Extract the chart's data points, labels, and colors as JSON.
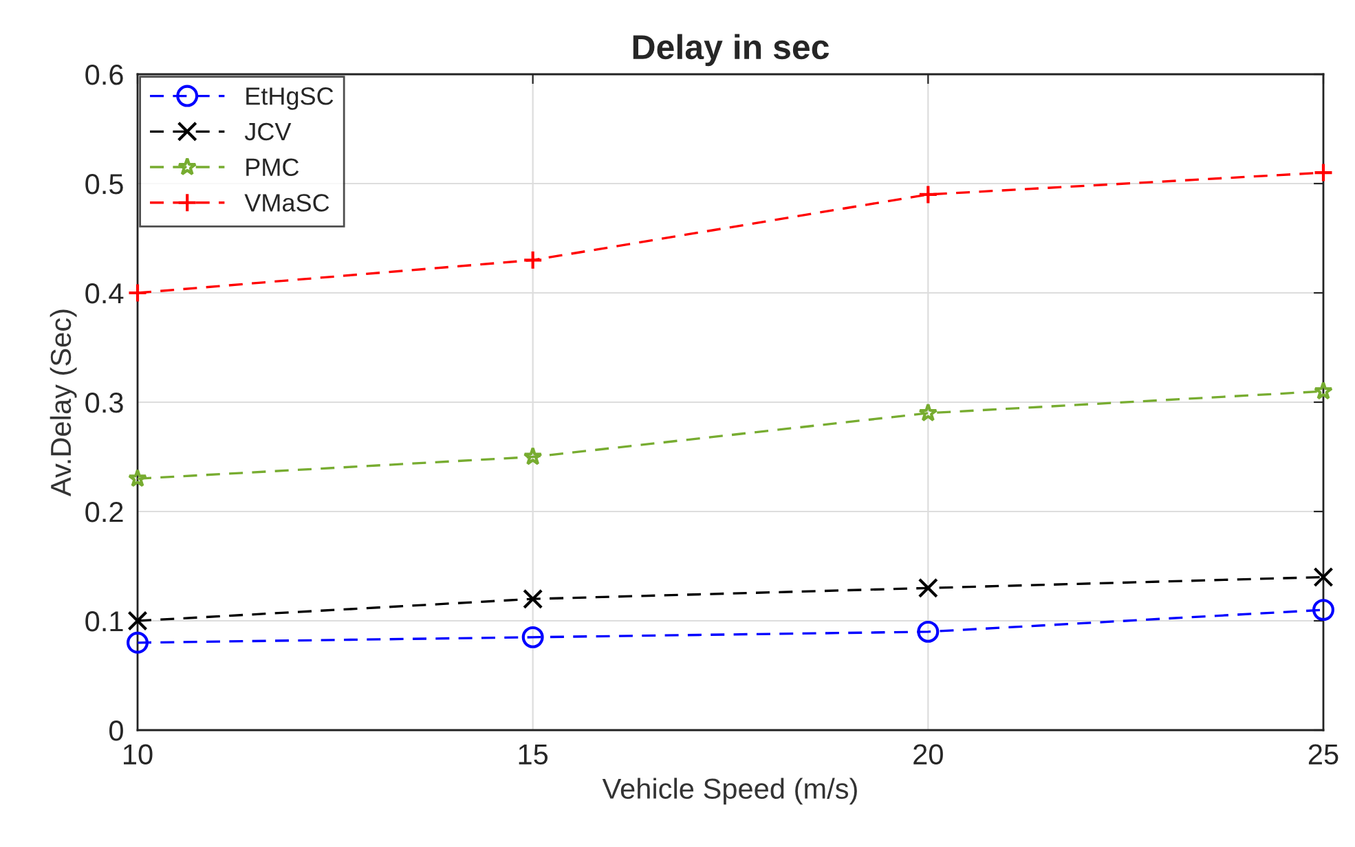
{
  "chart_data": {
    "type": "line",
    "title": "Delay in sec",
    "xlabel": "Vehicle Speed (m/s)",
    "ylabel": "Av.Delay (Sec)",
    "x": [
      10,
      15,
      20,
      25
    ],
    "series": [
      {
        "name": "EtHgSC",
        "color": "#0000ff",
        "marker": "circle",
        "values": [
          0.08,
          0.085,
          0.09,
          0.11
        ]
      },
      {
        "name": "JCV",
        "color": "#000000",
        "marker": "cross",
        "values": [
          0.1,
          0.12,
          0.13,
          0.14
        ]
      },
      {
        "name": "PMC",
        "color": "#77ac30",
        "marker": "star",
        "values": [
          0.23,
          0.25,
          0.29,
          0.31
        ]
      },
      {
        "name": "VMaSC",
        "color": "#ff0000",
        "marker": "plus",
        "values": [
          0.4,
          0.43,
          0.49,
          0.51
        ]
      }
    ],
    "xlim": [
      10,
      25
    ],
    "xticks": [
      10,
      15,
      20,
      25
    ],
    "ylim": [
      0,
      0.6
    ],
    "yticks": [
      0,
      0.1,
      0.2,
      0.3,
      0.4,
      0.5,
      0.6
    ],
    "grid": true,
    "legend": "top left",
    "line_style": "dashed"
  }
}
